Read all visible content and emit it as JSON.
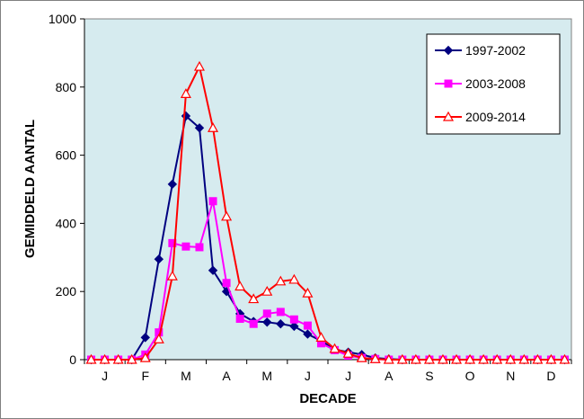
{
  "chart_data": {
    "type": "line",
    "xlabel": "DECADE",
    "ylabel": "GEMIDDELD AANTAL",
    "ylim": [
      0,
      1000
    ],
    "yticks": [
      0,
      200,
      400,
      600,
      800,
      1000
    ],
    "month_labels": [
      "J",
      "F",
      "M",
      "A",
      "M",
      "J",
      "J",
      "A",
      "S",
      "O",
      "N",
      "D"
    ],
    "decades_per_month": 3,
    "grid": false,
    "legend_position": "top-right",
    "plot_background": "#d6ebef",
    "series": [
      {
        "name": "1997-2002",
        "color": "#000080",
        "marker": "diamond",
        "values": [
          0,
          0,
          0,
          0,
          65,
          295,
          515,
          715,
          680,
          262,
          200,
          135,
          112,
          110,
          105,
          98,
          75,
          55,
          30,
          22,
          15,
          5,
          2,
          0,
          0,
          0,
          0,
          0,
          0,
          0,
          0,
          0,
          0,
          0,
          0,
          0
        ]
      },
      {
        "name": "2003-2008",
        "color": "#ff00ff",
        "marker": "square",
        "values": [
          0,
          0,
          0,
          0,
          15,
          80,
          342,
          332,
          330,
          465,
          225,
          120,
          105,
          135,
          140,
          118,
          100,
          48,
          28,
          12,
          5,
          2,
          0,
          0,
          0,
          0,
          0,
          0,
          0,
          0,
          0,
          0,
          0,
          0,
          0,
          0
        ]
      },
      {
        "name": "2009-2014",
        "color": "#ff0000",
        "marker": "triangle",
        "values": [
          0,
          0,
          0,
          0,
          5,
          60,
          245,
          780,
          860,
          680,
          420,
          215,
          178,
          200,
          230,
          235,
          195,
          65,
          32,
          18,
          5,
          2,
          0,
          0,
          0,
          0,
          0,
          0,
          0,
          0,
          0,
          0,
          0,
          0,
          0,
          0
        ]
      }
    ]
  }
}
